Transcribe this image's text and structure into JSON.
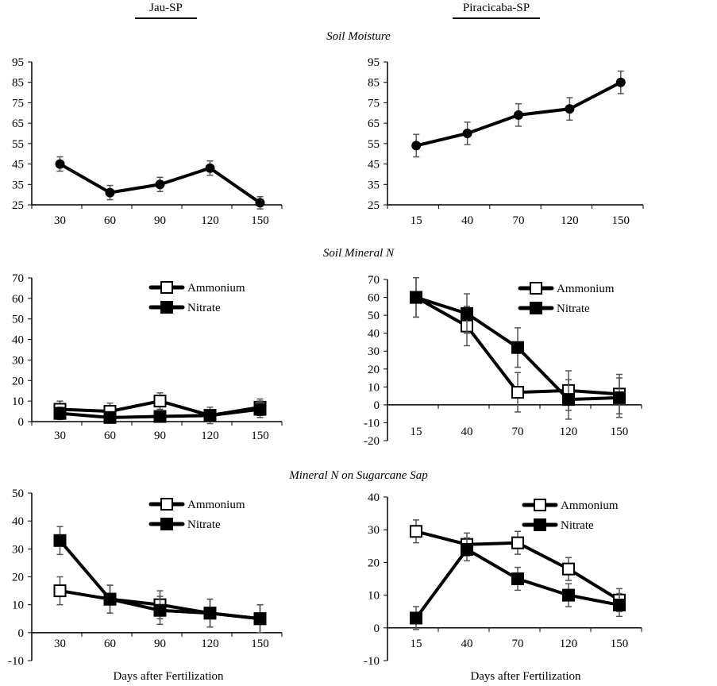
{
  "columns": [
    {
      "label": "Jau-SP"
    },
    {
      "label": "Piracicaba-SP"
    }
  ],
  "rows": [
    {
      "title": "Soil Moisture"
    },
    {
      "title": "Soil Mineral N"
    },
    {
      "title": "Mineral N on Sugarcane Sap"
    }
  ],
  "xlabel": "Days after Fertilization",
  "colors": {
    "line": "#000000",
    "error_bar": "#555555",
    "open_marker": "#ffffff",
    "filled_marker": "#000000"
  },
  "chart_data": [
    {
      "type": "line",
      "row": "Soil Moisture",
      "site": "Jau-SP",
      "categories": [
        "30",
        "60",
        "90",
        "120",
        "150"
      ],
      "ylim": [
        25,
        95
      ],
      "yticks": [
        25,
        35,
        45,
        55,
        65,
        75,
        85,
        95
      ],
      "legend": "none",
      "series": [
        {
          "marker": "circle",
          "values": [
            45,
            31,
            35,
            43,
            26
          ],
          "errors": [
            3.5,
            3.5,
            3.5,
            3.5,
            3
          ]
        }
      ]
    },
    {
      "type": "line",
      "row": "Soil Moisture",
      "site": "Piracicaba-SP",
      "categories": [
        "15",
        "40",
        "70",
        "120",
        "150"
      ],
      "ylim": [
        25,
        95
      ],
      "yticks": [
        25,
        35,
        45,
        55,
        65,
        75,
        85,
        95
      ],
      "legend": "none",
      "series": [
        {
          "marker": "circle",
          "values": [
            54,
            60,
            69,
            72,
            85
          ],
          "errors": [
            5.5,
            5.5,
            5.5,
            5.5,
            5.5
          ]
        }
      ]
    },
    {
      "type": "line",
      "row": "Soil Mineral N",
      "site": "Jau-SP",
      "categories": [
        "30",
        "60",
        "90",
        "120",
        "150"
      ],
      "ylim": [
        0,
        70
      ],
      "yticks": [
        0,
        10,
        20,
        30,
        40,
        50,
        60,
        70
      ],
      "legend": "top-center",
      "series": [
        {
          "name": "Ammonium",
          "marker": "open-square",
          "values": [
            6,
            5,
            10,
            3,
            7
          ],
          "errors": [
            4,
            4,
            4,
            4,
            4
          ]
        },
        {
          "name": "Nitrate",
          "marker": "filled-square",
          "values": [
            4,
            2,
            2.5,
            3,
            6
          ],
          "errors": [
            3,
            2,
            2,
            2,
            4
          ]
        }
      ]
    },
    {
      "type": "line",
      "row": "Soil Mineral N",
      "site": "Piracicaba-SP",
      "categories": [
        "15",
        "40",
        "70",
        "120",
        "150"
      ],
      "ylim": [
        -20,
        70
      ],
      "yticks": [
        -20,
        -10,
        0,
        10,
        20,
        30,
        40,
        50,
        60,
        70
      ],
      "legend": "top-right",
      "series": [
        {
          "name": "Ammonium",
          "marker": "open-square",
          "values": [
            60,
            44,
            7,
            8,
            6
          ],
          "errors": [
            11,
            11,
            11,
            11,
            11
          ]
        },
        {
          "name": "Nitrate",
          "marker": "filled-square",
          "values": [
            60,
            51,
            32,
            3,
            4
          ],
          "errors": [
            11,
            11,
            11,
            11,
            11
          ]
        }
      ]
    },
    {
      "type": "line",
      "row": "Mineral N on Sugarcane Sap",
      "site": "Jau-SP",
      "categories": [
        "30",
        "60",
        "90",
        "120",
        "150"
      ],
      "ylim": [
        -10,
        50
      ],
      "yticks": [
        -10,
        0,
        10,
        20,
        30,
        40,
        50
      ],
      "legend": "top-center",
      "series": [
        {
          "name": "Ammonium",
          "marker": "open-square",
          "values": [
            15,
            12,
            10,
            7,
            5
          ],
          "errors": [
            5,
            5,
            5,
            5,
            5
          ]
        },
        {
          "name": "Nitrate",
          "marker": "filled-square",
          "values": [
            33,
            12,
            8,
            7,
            5
          ],
          "errors": [
            5,
            5,
            5,
            5,
            5
          ]
        }
      ]
    },
    {
      "type": "line",
      "row": "Mineral N on Sugarcane Sap",
      "site": "Piracicaba-SP",
      "categories": [
        "15",
        "40",
        "70",
        "120",
        "150"
      ],
      "ylim": [
        -10,
        40
      ],
      "yticks": [
        -10,
        0,
        10,
        20,
        30,
        40
      ],
      "legend": "top-right",
      "series": [
        {
          "name": "Ammonium",
          "marker": "open-square",
          "values": [
            29.5,
            25.5,
            26,
            18,
            8.5
          ],
          "errors": [
            3.5,
            3.5,
            3.5,
            3.5,
            3.5
          ]
        },
        {
          "name": "Nitrate",
          "marker": "filled-square",
          "values": [
            3,
            24,
            15,
            10,
            7
          ],
          "errors": [
            3.5,
            3.5,
            3.5,
            3.5,
            3.5
          ]
        }
      ]
    }
  ]
}
